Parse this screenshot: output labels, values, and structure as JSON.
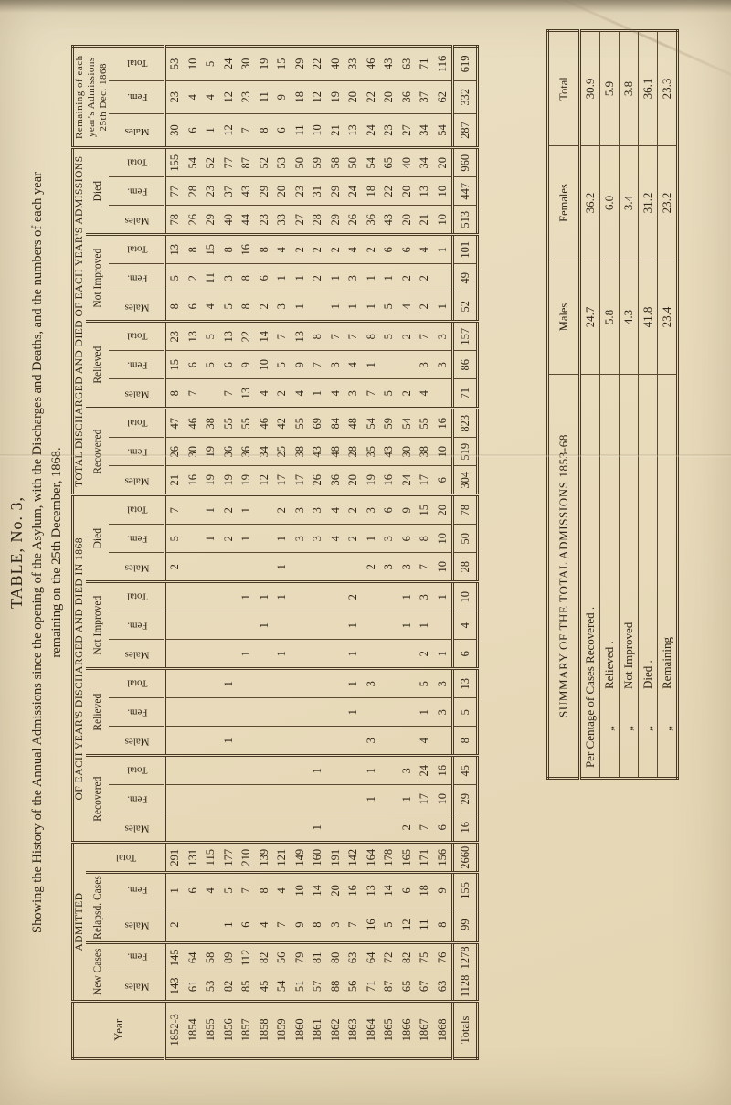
{
  "title": {
    "line1": "TABLE, No. 3,",
    "line2": "Showing the History of the Annual Admissions since the opening of the Asylum, with the Discharges and Deaths, and the numbers of each year",
    "line3": "remaining on the 25th December, 1868."
  },
  "table": {
    "year_label": "Year",
    "totals_label": "Totals",
    "labels": {
      "males": "Males",
      "fem": "Fem.",
      "total": "Total"
    },
    "groups": {
      "admitted": "ADMITTED",
      "new_cases": "New Cases",
      "relapsed_cases": "Relapsd. Cases",
      "in1868": "OF EACH YEAR'S DISCHARGED AND DIED IN 1868",
      "total_discharged": "TOTAL DISCHARGED AND DIED OF EACH YEAR'S ADMISSIONS",
      "remaining": "Remaining of each year's Admissions 25th Dec. 1868",
      "recovered": "Recovered",
      "relieved": "Relieved",
      "not_improved": "Not Improved",
      "died": "Died"
    },
    "years": [
      "1852-3",
      "1854",
      "1855",
      "1856",
      "1857",
      "1858",
      "1859",
      "1860",
      "1861",
      "1862",
      "1863",
      "1864",
      "1865",
      "1866",
      "1867",
      "1868"
    ],
    "columns": [
      {
        "name": "admitted-new-males",
        "values": [
          143,
          61,
          53,
          82,
          85,
          45,
          54,
          51,
          57,
          88,
          56,
          71,
          87,
          65,
          67,
          63
        ],
        "total": 1128
      },
      {
        "name": "admitted-new-fem",
        "values": [
          145,
          64,
          58,
          89,
          112,
          82,
          56,
          79,
          81,
          80,
          63,
          64,
          72,
          82,
          75,
          76
        ],
        "total": 1278
      },
      {
        "name": "admitted-relapsed-males",
        "values": [
          2,
          "",
          "",
          1,
          6,
          4,
          7,
          9,
          8,
          3,
          7,
          16,
          5,
          12,
          11,
          8
        ],
        "total": 99
      },
      {
        "name": "admitted-relapsed-fem",
        "values": [
          1,
          6,
          4,
          5,
          7,
          8,
          4,
          10,
          14,
          20,
          16,
          13,
          14,
          6,
          18,
          9
        ],
        "total": 155
      },
      {
        "name": "admitted-total",
        "values": [
          291,
          131,
          115,
          177,
          210,
          139,
          121,
          149,
          160,
          191,
          142,
          164,
          178,
          165,
          171,
          156
        ],
        "total": 2660
      },
      {
        "name": "y1868-recovered-males",
        "values": [
          "",
          "",
          "",
          "",
          "",
          "",
          "",
          "",
          1,
          "",
          "",
          "",
          "",
          2,
          7,
          6
        ],
        "total": 16
      },
      {
        "name": "y1868-recovered-fem",
        "values": [
          "",
          "",
          "",
          "",
          "",
          "",
          "",
          "",
          "",
          "",
          "",
          1,
          "",
          1,
          17,
          10
        ],
        "total": 29
      },
      {
        "name": "y1868-recovered-total",
        "values": [
          "",
          "",
          "",
          "",
          "",
          "",
          "",
          "",
          1,
          "",
          "",
          1,
          "",
          3,
          24,
          16
        ],
        "total": 45
      },
      {
        "name": "y1868-relieved-males",
        "values": [
          "",
          "",
          "",
          1,
          "",
          "",
          "",
          "",
          "",
          "",
          "",
          3,
          "",
          "",
          4,
          ""
        ],
        "total": 8
      },
      {
        "name": "y1868-relieved-fem",
        "values": [
          "",
          "",
          "",
          "",
          "",
          "",
          "",
          "",
          "",
          "",
          1,
          "",
          "",
          "",
          1,
          3
        ],
        "total": 5
      },
      {
        "name": "y1868-relieved-total",
        "values": [
          "",
          "",
          "",
          1,
          "",
          "",
          "",
          "",
          "",
          "",
          1,
          3,
          "",
          "",
          5,
          3
        ],
        "total": 13
      },
      {
        "name": "y1868-notimproved-males",
        "values": [
          "",
          "",
          "",
          "",
          1,
          "",
          1,
          "",
          "",
          "",
          1,
          "",
          "",
          "",
          2,
          1
        ],
        "total": 6
      },
      {
        "name": "y1868-notimproved-fem",
        "values": [
          "",
          "",
          "",
          "",
          "",
          1,
          "",
          "",
          "",
          "",
          1,
          "",
          "",
          1,
          1,
          ""
        ],
        "total": 4
      },
      {
        "name": "y1868-notimproved-total",
        "values": [
          "",
          "",
          "",
          "",
          1,
          1,
          1,
          "",
          "",
          "",
          2,
          "",
          "",
          1,
          3,
          1
        ],
        "total": 10
      },
      {
        "name": "y1868-died-males",
        "values": [
          2,
          "",
          "",
          "",
          "",
          "",
          1,
          "",
          "",
          "",
          "",
          2,
          3,
          3,
          7,
          10
        ],
        "total": 28
      },
      {
        "name": "y1868-died-fem",
        "values": [
          5,
          "",
          1,
          2,
          1,
          "",
          1,
          3,
          3,
          4,
          2,
          1,
          3,
          6,
          8,
          10
        ],
        "total": 50
      },
      {
        "name": "y1868-died-total",
        "values": [
          7,
          "",
          1,
          2,
          1,
          "",
          2,
          3,
          3,
          4,
          2,
          3,
          6,
          9,
          15,
          20
        ],
        "total": 78
      },
      {
        "name": "total-recovered-males",
        "values": [
          21,
          16,
          19,
          19,
          19,
          12,
          17,
          17,
          26,
          36,
          20,
          19,
          16,
          24,
          17,
          6
        ],
        "total": 304
      },
      {
        "name": "total-recovered-fem",
        "values": [
          26,
          30,
          19,
          36,
          36,
          34,
          25,
          38,
          43,
          48,
          28,
          35,
          43,
          30,
          38,
          10
        ],
        "total": 519
      },
      {
        "name": "total-recovered-total",
        "values": [
          47,
          46,
          38,
          55,
          55,
          46,
          42,
          55,
          69,
          84,
          48,
          54,
          59,
          54,
          55,
          16
        ],
        "total": 823
      },
      {
        "name": "total-relieved-males",
        "values": [
          8,
          7,
          "",
          7,
          13,
          4,
          2,
          4,
          1,
          4,
          3,
          7,
          5,
          2,
          4,
          ""
        ],
        "total": 71
      },
      {
        "name": "total-relieved-fem",
        "values": [
          15,
          6,
          5,
          6,
          9,
          10,
          5,
          9,
          7,
          3,
          4,
          1,
          "",
          "",
          3,
          3
        ],
        "total": 86
      },
      {
        "name": "total-relieved-total",
        "values": [
          23,
          13,
          5,
          13,
          22,
          14,
          7,
          13,
          8,
          7,
          7,
          8,
          5,
          2,
          7,
          3
        ],
        "total": 157
      },
      {
        "name": "total-notimproved-males",
        "values": [
          8,
          6,
          4,
          5,
          8,
          2,
          3,
          1,
          "",
          1,
          1,
          1,
          5,
          4,
          2,
          1
        ],
        "total": 52
      },
      {
        "name": "total-notimproved-fem",
        "values": [
          5,
          2,
          11,
          3,
          8,
          6,
          1,
          1,
          2,
          1,
          3,
          1,
          1,
          2,
          2,
          ""
        ],
        "total": 49
      },
      {
        "name": "total-notimproved-total",
        "values": [
          13,
          8,
          15,
          8,
          16,
          8,
          4,
          2,
          2,
          2,
          4,
          2,
          6,
          6,
          4,
          1
        ],
        "total": 101
      },
      {
        "name": "total-died-males",
        "values": [
          78,
          26,
          29,
          40,
          44,
          23,
          33,
          27,
          28,
          29,
          26,
          36,
          43,
          20,
          21,
          10
        ],
        "total": 513
      },
      {
        "name": "total-died-fem",
        "values": [
          77,
          28,
          23,
          37,
          43,
          29,
          20,
          23,
          31,
          29,
          24,
          18,
          22,
          20,
          13,
          10
        ],
        "total": 447
      },
      {
        "name": "total-died-total",
        "values": [
          155,
          54,
          52,
          77,
          87,
          52,
          53,
          50,
          59,
          58,
          50,
          54,
          65,
          40,
          34,
          20
        ],
        "total": 960
      },
      {
        "name": "remaining-males",
        "values": [
          30,
          6,
          1,
          12,
          7,
          8,
          6,
          11,
          10,
          21,
          13,
          24,
          23,
          27,
          34,
          54
        ],
        "total": 287
      },
      {
        "name": "remaining-fem",
        "values": [
          23,
          4,
          4,
          12,
          23,
          11,
          9,
          18,
          12,
          19,
          20,
          22,
          20,
          36,
          37,
          62
        ],
        "total": 332
      },
      {
        "name": "remaining-total",
        "values": [
          53,
          10,
          5,
          24,
          30,
          19,
          15,
          29,
          22,
          40,
          33,
          46,
          43,
          63,
          71,
          116
        ],
        "total": 619
      }
    ]
  },
  "summary": {
    "header": "SUMMARY OF THE TOTAL ADMISSIONS 1853-68",
    "col_males": "Males",
    "col_females": "Females",
    "col_total": "Total",
    "rows": [
      {
        "ditto": "",
        "label": "Per Centage of Cases Recovered .",
        "males": "24.7",
        "females": "36.2",
        "total": "30.9"
      },
      {
        "ditto": "„",
        "label": "Relieved .",
        "males": "5.8",
        "females": "6.0",
        "total": "5.9"
      },
      {
        "ditto": "„",
        "label": "Not Improved",
        "males": "4.3",
        "females": "3.4",
        "total": "3.8"
      },
      {
        "ditto": "„",
        "label": "Died .",
        "males": "41.8",
        "females": "31.2",
        "total": "36.1"
      },
      {
        "ditto": "„",
        "label": "Remaining",
        "males": "23.4",
        "females": "23.2",
        "total": "23.3"
      }
    ]
  }
}
